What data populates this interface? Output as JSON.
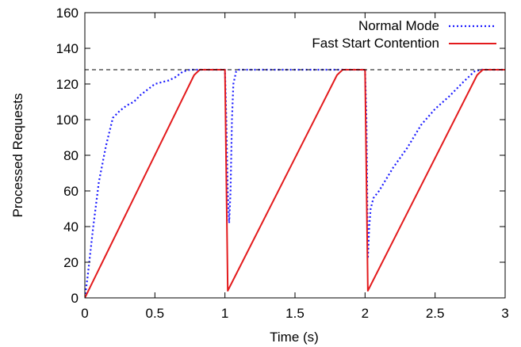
{
  "chart_data": {
    "type": "line",
    "title": "",
    "xlabel": "Time (s)",
    "ylabel": "Processed Requests",
    "xlim": [
      0,
      3
    ],
    "ylim": [
      0,
      160
    ],
    "xticks": [
      0,
      0.5,
      1,
      1.5,
      2,
      2.5,
      3
    ],
    "xtick_labels": [
      "0",
      "0.5",
      "1",
      "1.5",
      "2",
      "2.5",
      "3"
    ],
    "yticks": [
      0,
      20,
      40,
      60,
      80,
      100,
      120,
      140,
      160
    ],
    "ytick_labels": [
      "0",
      "20",
      "40",
      "60",
      "80",
      "100",
      "120",
      "140",
      "160"
    ],
    "grid": false,
    "legend_position": "top-right",
    "reference_line": {
      "y": 128,
      "style": "dashed",
      "color": "#000000"
    },
    "series": [
      {
        "name": "Normal Mode",
        "style": "dotted",
        "color": "#1a1aff",
        "x": [
          0,
          0.02,
          0.06,
          0.1,
          0.15,
          0.2,
          0.25,
          0.3,
          0.35,
          0.4,
          0.45,
          0.5,
          0.55,
          0.6,
          0.65,
          0.7,
          0.75,
          0.8,
          0.85,
          0.9,
          0.95,
          1.0,
          1.01,
          1.02,
          1.03,
          1.04,
          1.05,
          1.06,
          1.08,
          1.1,
          1.15,
          1.3,
          1.5,
          1.7,
          1.9,
          2.0,
          2.01,
          2.02,
          2.03,
          2.04,
          2.06,
          2.1,
          2.2,
          2.3,
          2.4,
          2.5,
          2.6,
          2.7,
          2.78,
          2.83,
          2.9,
          3.0
        ],
        "y": [
          0,
          12,
          40,
          65,
          85,
          101,
          105,
          108,
          110,
          114,
          117,
          120,
          121,
          122,
          124,
          127,
          128,
          128,
          128,
          128,
          128,
          128,
          100,
          60,
          42,
          60,
          100,
          120,
          127,
          128,
          128,
          128,
          128,
          128,
          128,
          128,
          100,
          22,
          40,
          50,
          56,
          60,
          73,
          84,
          97,
          106,
          113,
          121,
          127,
          128,
          128,
          128
        ]
      },
      {
        "name": "Fast Start Contention",
        "style": "solid",
        "color": "#e31a1c",
        "x": [
          0,
          0.78,
          0.82,
          0.98,
          1.0,
          1.02,
          1.8,
          1.84,
          1.98,
          2.0,
          2.02,
          2.8,
          2.84,
          3.0
        ],
        "y": [
          0,
          125,
          128,
          128,
          128,
          4,
          125,
          128,
          128,
          128,
          4,
          125,
          128,
          128
        ]
      }
    ]
  }
}
